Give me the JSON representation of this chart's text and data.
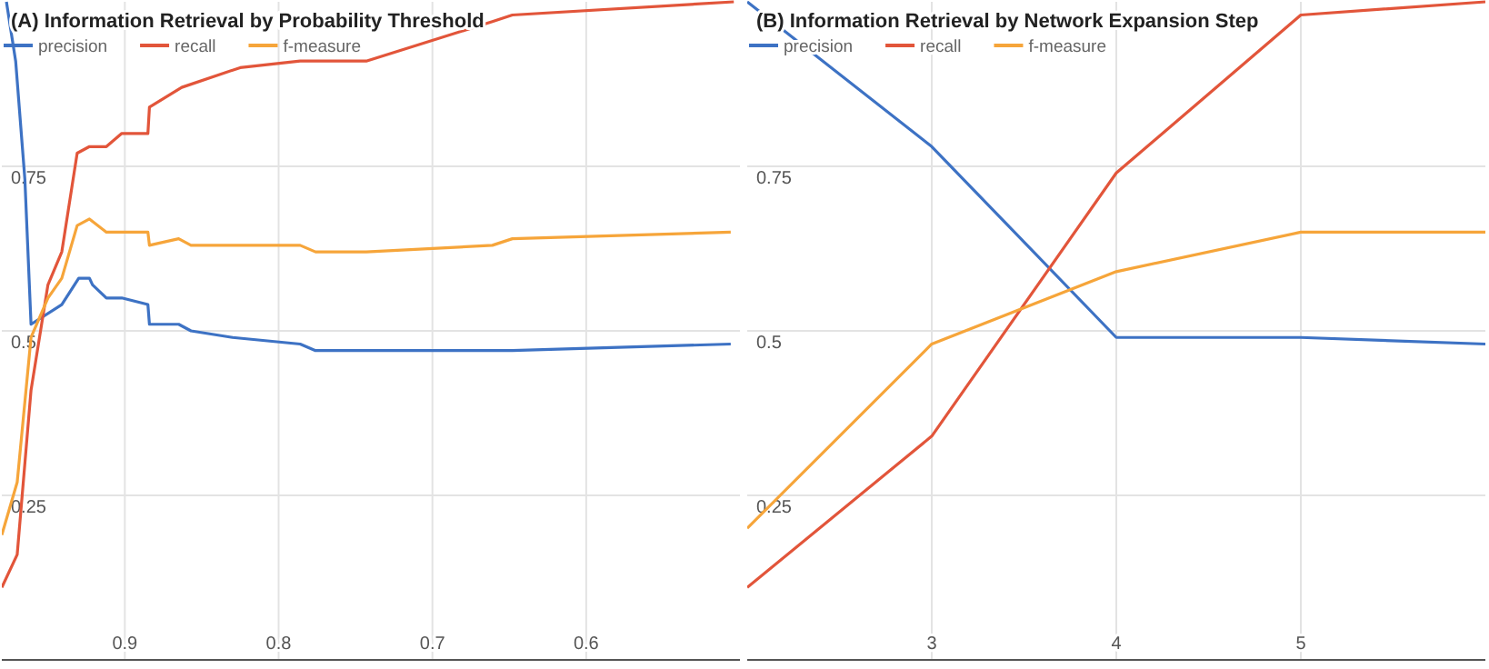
{
  "chart_data": [
    {
      "type": "line",
      "title": "(A) Information Retrieval by Probability Threshold",
      "xlim": [
        0.98,
        0.5
      ],
      "xticks": [
        0.9,
        0.8,
        0.7,
        0.6
      ],
      "ylim": [
        0,
        1
      ],
      "yticks": [
        0.25,
        0.5,
        0.75
      ],
      "grid": true,
      "legend": "top left",
      "marker": "none",
      "line_style": "solid",
      "series": [
        {
          "name": "precision",
          "color": "#3d72c4",
          "x": [
            0.977,
            0.971,
            0.965,
            0.961,
            0.941,
            0.93,
            0.923,
            0.921,
            0.912,
            0.902,
            0.885,
            0.884,
            0.865,
            0.857,
            0.83,
            0.786,
            0.776,
            0.747,
            0.665,
            0.648,
            0.506
          ],
          "values": [
            1.0,
            0.91,
            0.73,
            0.51,
            0.54,
            0.58,
            0.58,
            0.57,
            0.55,
            0.55,
            0.54,
            0.51,
            0.51,
            0.5,
            0.49,
            0.48,
            0.47,
            0.47,
            0.47,
            0.47,
            0.48
          ]
        },
        {
          "name": "recall",
          "color": "#e2553a",
          "x": [
            0.98,
            0.97,
            0.961,
            0.95,
            0.941,
            0.931,
            0.923,
            0.912,
            0.902,
            0.885,
            0.884,
            0.863,
            0.825,
            0.786,
            0.743,
            0.661,
            0.648,
            0.504
          ],
          "values": [
            0.11,
            0.16,
            0.41,
            0.57,
            0.62,
            0.77,
            0.78,
            0.78,
            0.8,
            0.8,
            0.84,
            0.87,
            0.9,
            0.91,
            0.91,
            0.97,
            0.98,
            1.0
          ]
        },
        {
          "name": "f-measure",
          "color": "#f6a53a",
          "x": [
            0.98,
            0.97,
            0.961,
            0.95,
            0.941,
            0.931,
            0.923,
            0.912,
            0.902,
            0.885,
            0.884,
            0.865,
            0.857,
            0.786,
            0.776,
            0.743,
            0.661,
            0.648,
            0.506
          ],
          "values": [
            0.19,
            0.27,
            0.49,
            0.55,
            0.58,
            0.66,
            0.67,
            0.65,
            0.65,
            0.65,
            0.63,
            0.64,
            0.63,
            0.63,
            0.62,
            0.62,
            0.63,
            0.64,
            0.65
          ]
        }
      ]
    },
    {
      "type": "line",
      "title": "(B) Information Retrieval by Network Expansion Step",
      "xlim": [
        2,
        6
      ],
      "xticks": [
        3,
        4,
        5
      ],
      "ylim": [
        0,
        1
      ],
      "yticks": [
        0.25,
        0.5,
        0.75
      ],
      "grid": true,
      "legend": "top left",
      "marker": "none",
      "line_style": "solid",
      "series": [
        {
          "name": "precision",
          "color": "#3d72c4",
          "x": [
            2,
            3,
            4,
            5,
            6
          ],
          "values": [
            1.0,
            0.78,
            0.49,
            0.49,
            0.48
          ]
        },
        {
          "name": "recall",
          "color": "#e2553a",
          "x": [
            2,
            3,
            4,
            5,
            6
          ],
          "values": [
            0.11,
            0.34,
            0.74,
            0.98,
            1.0
          ]
        },
        {
          "name": "f-measure",
          "color": "#f6a53a",
          "x": [
            2,
            3,
            4,
            5,
            6
          ],
          "values": [
            0.2,
            0.48,
            0.59,
            0.65,
            0.65
          ]
        }
      ]
    }
  ]
}
